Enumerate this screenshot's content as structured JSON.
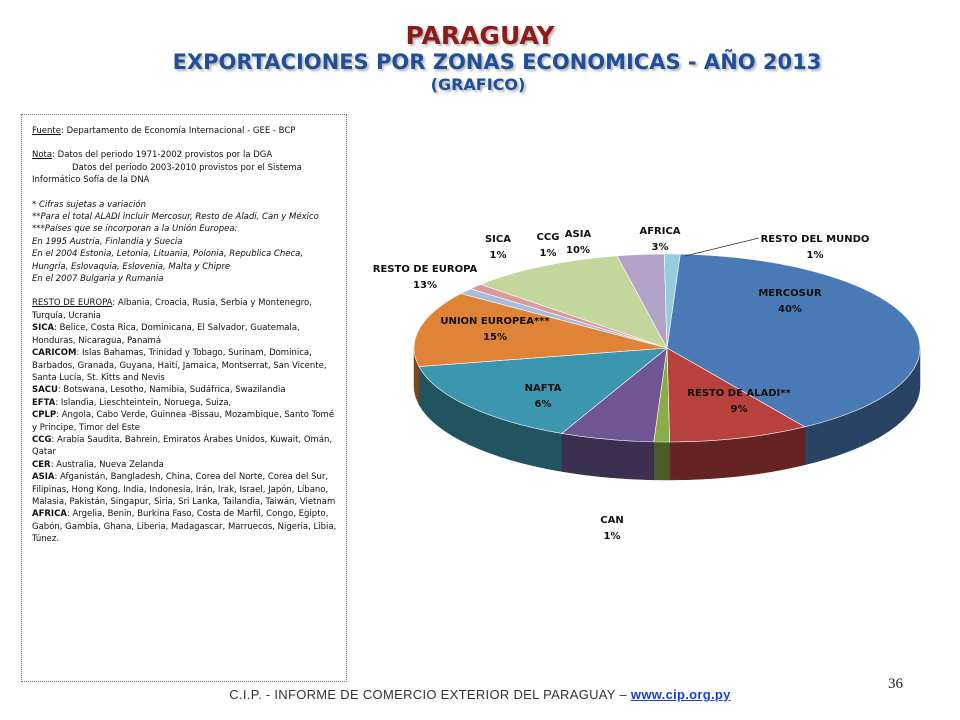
{
  "title": {
    "line1": "PARAGUAY",
    "line2": "EXPORTACIONES POR ZONAS ECONOMICAS - AÑO 2013",
    "line3": "(GRAFICO)"
  },
  "notes": {
    "fuente_label": "Fuente",
    "fuente_text": ": Departamento de Economía Internacional - GEE - BCP",
    "nota_label": "Nota",
    "nota_text": ": Datos del periodo 1971-2002 provistos por la DGA",
    "nota_text2": "Datos del periodo 2003-2010 provistos por el Sistema",
    "nota_text3": "Informático Sofía de la DNA",
    "italic_lines": [
      "* Cifras sujetas a variación",
      "**Para el total ALADI incluir Mercosur, Resto de Aladi, Can y México",
      "***Países que se incorporan a la Unión Europea:",
      "En 1995 Austria, Finlandia y Suecia",
      "En el 2004 Estonia, Letonia, Lituania, Polonia, Republica Checa, Hungría, Eslovaquia, Eslovenia, Malta y Chipre",
      "En el 2007 Bulgaria y Rumania"
    ],
    "groups": [
      {
        "name": "RESTO DE EUROPA",
        "text": ":   Albania,  Croacia,  Rusia,  Serbia y Montenegro,  Turquía,  Ucrania"
      },
      {
        "name": "SICA",
        "text": ":   Belice,  Costa Rica,  Dominicana,  El Salvador, Guatemala, Honduras, Nicaragua, Panamá"
      },
      {
        "name": "CARICOM",
        "text": ":   Islas Bahamas,  Trinidad y Tobago,  Surinam, Dominica, Barbados, Granada, Guyana, Haití, Jamaica, Montserrat, San Vicente, Santa Lucía, St. Kitts and Nevis"
      },
      {
        "name": "SACU",
        "text": ":  Botswana,  Lesotho,  Namibia,  Sudáfrica,  Swazilandia"
      },
      {
        "name": "EFTA",
        "text": ":  Islandia,  Lieschteintein,  Noruega,  Suiza,"
      },
      {
        "name": "CPLP",
        "text": ":  Angola,  Cabo Verde,  Guinnea -Bissau,  Mozambique, Santo Tomé y Principe,  Timor del Este"
      },
      {
        "name": "CCG",
        "text": ":  Arabia Saudita,  Bahrein,  Emiratos Árabes Unidos, Kuwait,  Omán,  Qatar"
      },
      {
        "name": "CER",
        "text": ":   Australia,  Nueva Zelanda"
      },
      {
        "name": "ASIA",
        "text": ": Afganistán, Bangladesh,  China, Corea del Norte, Corea del Sur, Filipinas, Hong Kong, India, Indonesia, Irán,  Irak, Israel, Japón,  Líbano, Malasia, Pakistán, Singapur, Siria, Sri Lanka, Tailandia, Taiwán, Vietnam"
      },
      {
        "name": "AFRICA",
        "text": ": Argelia, Benin, Burkina Faso, Costa de Marfil, Congo, Egipto, Gabón, Gambia, Ghana, Liberia, Madagascar, Marruecos, Nigeria, Libia, Túnez."
      }
    ]
  },
  "chart_data": {
    "type": "pie",
    "title": "",
    "series": [
      {
        "name": "MERCOSUR",
        "value": 40,
        "label": "40%",
        "color": "#4a7ab5"
      },
      {
        "name": "RESTO DE ALADI**",
        "value": 9,
        "label": "9%",
        "color": "#b8413d"
      },
      {
        "name": "CAN",
        "value": 1,
        "label": "1%",
        "color": "#8aab46"
      },
      {
        "name": "NAFTA",
        "value": 6,
        "label": "6%",
        "color": "#6f5593"
      },
      {
        "name": "UNION EUROPEA***",
        "value": 15,
        "label": "15%",
        "color": "#3c96b0"
      },
      {
        "name": "RESTO DE EUROPA",
        "value": 13,
        "label": "13%",
        "color": "#df8337"
      },
      {
        "name": "SICA",
        "value": 1,
        "label": "1%",
        "color": "#a7bcdc"
      },
      {
        "name": "CCG",
        "value": 1,
        "label": "1%",
        "color": "#d99a98"
      },
      {
        "name": "ASIA",
        "value": 10,
        "label": "10%",
        "color": "#c3d69b"
      },
      {
        "name": "AFRICA",
        "value": 3,
        "label": "3%",
        "color": "#b2a2c7"
      },
      {
        "name": "RESTO DEL MUNDO",
        "value": 1,
        "label": "1%",
        "color": "#94cddd"
      }
    ],
    "three_d": true
  },
  "footer": {
    "text": "C.I.P. - INFORME DE COMERCIO EXTERIOR DEL PARAGUAY –",
    "link": "www.cip.org.py"
  },
  "page_number": "36"
}
